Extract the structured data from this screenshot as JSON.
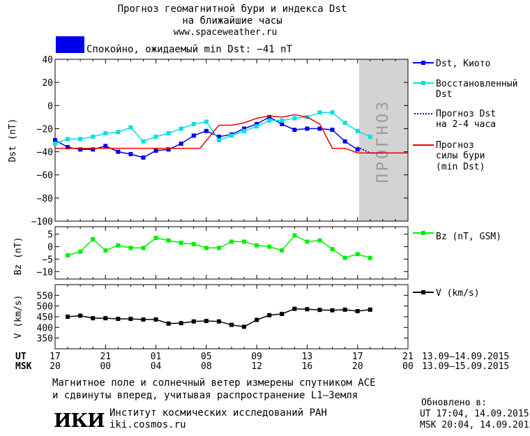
{
  "header": {
    "title_line1": "Прогноз геомагнитной бури и индекса Dst",
    "title_line2": "на ближайшие часы",
    "site": "www.spaceweather.ru",
    "status_text": "Спокойно, ожидаемый min Dst: −41 nT",
    "status_color": "#0000ee"
  },
  "chart_data": [
    {
      "type": "line",
      "title": "",
      "ylabel": "Dst (nT)",
      "ylim": [
        -100,
        40
      ],
      "yticks": [
        40,
        20,
        0,
        -20,
        -40,
        -60,
        -80,
        -100
      ],
      "forecast_label": "ПРОГНОЗ",
      "series": [
        {
          "name": "Dst, Киото",
          "color": "#0000ee",
          "marker": "square",
          "x": [
            0,
            1,
            2,
            3,
            4,
            5,
            6,
            7,
            8,
            9,
            10,
            11,
            12,
            13,
            14,
            15,
            16,
            17,
            18,
            19,
            20,
            21,
            22,
            23,
            24
          ],
          "y": [
            -30,
            -36,
            -38,
            -38,
            -35,
            -40,
            -42,
            -45,
            -39,
            -38,
            -33,
            -26,
            -22,
            -27,
            -25,
            -20,
            -16,
            -10,
            -16,
            -21,
            -20,
            -20,
            -21,
            -31,
            -38
          ]
        },
        {
          "name": "Восстановленный Dst",
          "color": "#00e0e0",
          "marker": "square",
          "x": [
            0,
            1,
            2,
            3,
            4,
            5,
            6,
            7,
            8,
            9,
            10,
            11,
            12,
            13,
            14,
            15,
            16,
            17,
            18,
            19,
            20,
            21,
            22,
            23,
            24,
            25
          ],
          "y": [
            -33,
            -29,
            -29,
            -27,
            -24,
            -23,
            -19,
            -31,
            -27,
            -24,
            -20,
            -16,
            -14,
            -30,
            -26,
            -22,
            -18,
            -13,
            -13,
            -11,
            -10,
            -6,
            -6,
            -15,
            -22,
            -27
          ]
        },
        {
          "name": "Прогноз Dst\nна 2-4 часа",
          "color": "#0000ee",
          "style": "dotted",
          "x": [
            24,
            25,
            26
          ],
          "y": [
            -36,
            -41,
            -41
          ]
        },
        {
          "name": "Прогноз\nсилы бури\n(min Dst)",
          "color": "#ee0000",
          "x": [
            0,
            11.5,
            13,
            14,
            15,
            16,
            17,
            18,
            19,
            20,
            21,
            22,
            23,
            24,
            28
          ],
          "y": [
            -37,
            -37,
            -17,
            -17,
            -15,
            -11,
            -9,
            -10,
            -8,
            -10,
            -16,
            -37,
            -37,
            -41,
            -41
          ]
        }
      ]
    },
    {
      "type": "line",
      "ylabel": "Bz (nT)",
      "ylim": [
        -13,
        8
      ],
      "yticks": [
        5,
        0,
        -5,
        -10
      ],
      "series": [
        {
          "name": "Bz (nT, GSM)",
          "color": "#00ee00",
          "marker": "square",
          "x": [
            1,
            2,
            3,
            4,
            5,
            6,
            7,
            8,
            9,
            10,
            11,
            12,
            13,
            14,
            15,
            16,
            17,
            18,
            19,
            20,
            21,
            22,
            23,
            24,
            25
          ],
          "y": [
            -3.5,
            -2,
            3,
            -1.5,
            0.5,
            -0.5,
            -0.5,
            3.5,
            2.5,
            1.5,
            1,
            -0.5,
            -0.5,
            2,
            2,
            0.5,
            0,
            -1.5,
            4.5,
            2,
            2.5,
            -1,
            -4.5,
            -3,
            -4.5
          ]
        }
      ]
    },
    {
      "type": "line",
      "ylabel": "V (km/s)",
      "ylim": [
        300,
        600
      ],
      "yticks": [
        550,
        500,
        450,
        400,
        350
      ],
      "series": [
        {
          "name": "V (km/s)",
          "color": "#000000",
          "marker": "square",
          "x": [
            1,
            2,
            3,
            4,
            5,
            6,
            7,
            8,
            9,
            10,
            11,
            12,
            13,
            14,
            15,
            16,
            17,
            18,
            19,
            20,
            21,
            22,
            23,
            24,
            25
          ],
          "y": [
            450,
            455,
            443,
            443,
            440,
            440,
            437,
            437,
            418,
            420,
            428,
            430,
            428,
            412,
            403,
            435,
            457,
            463,
            487,
            485,
            482,
            480,
            483,
            476,
            483
          ]
        }
      ]
    }
  ],
  "time_axis": {
    "ut_label": "UT",
    "msk_label": "MSK",
    "ut_ticks": [
      "17",
      "21",
      "01",
      "05",
      "09",
      "13",
      "17",
      "21"
    ],
    "msk_ticks": [
      "20",
      "00",
      "04",
      "08",
      "12",
      "16",
      "20",
      "00"
    ],
    "ut_range": "13.09–14.09.2015",
    "msk_range": "13.09–15.09.2015"
  },
  "footer": {
    "note_line1": "Магнитное поле и солнечный ветер измерены спутником ACE",
    "note_line2": "и сдвинуты вперед, учитывая распространение L1–Земля",
    "logo_text": "ИКИ",
    "institute": "Институт космических исследований РАН",
    "institute_site": "iki.cosmos.ru",
    "updated_label": "Обновлено в:",
    "updated_ut": "UT  17:04, 14.09.2015",
    "updated_msk": "MSK 20:04, 14.09.2015"
  }
}
